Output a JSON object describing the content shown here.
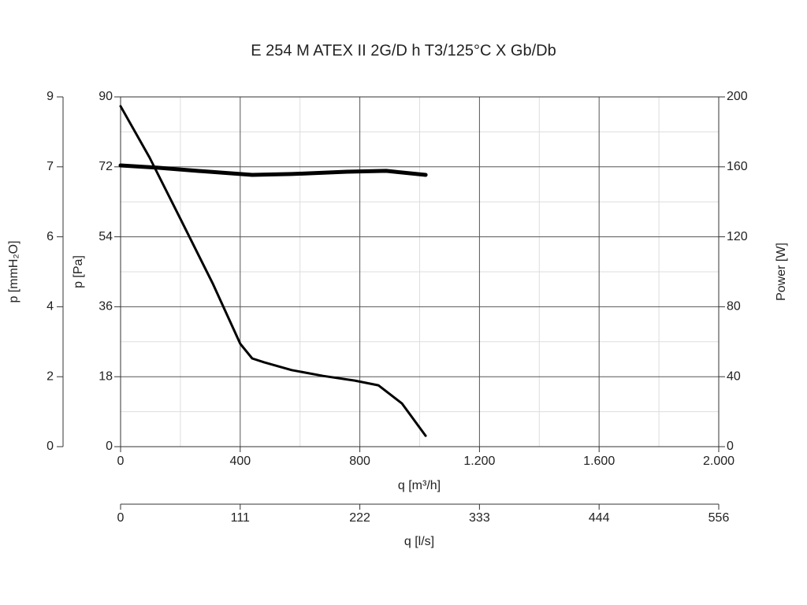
{
  "chart_data": {
    "type": "line",
    "title": "E 254 M ATEX II 2G/D h T3/125°C X Gb/Db",
    "x_label": "q [m³/h]",
    "x2_label": "q [l/s]",
    "y_label": "p [Pa]",
    "y2_label": "Power [W]",
    "y3_label": "p [mmH₂O]",
    "xlim": [
      0,
      2000
    ],
    "xticks": [
      0,
      400,
      800,
      {
        "value": 1200,
        "label": "1.200"
      },
      {
        "value": 1600,
        "label": "1.600"
      },
      {
        "value": 2000,
        "label": "2.000"
      }
    ],
    "xminorticks": [
      200,
      600,
      1000,
      1400,
      1800
    ],
    "x2lim": [
      0,
      555.56
    ],
    "x2ticks": [
      0,
      {
        "value": 111.11,
        "label": "111"
      },
      {
        "value": 222.22,
        "label": "222"
      },
      {
        "value": 333.33,
        "label": "333"
      },
      {
        "value": 444.44,
        "label": "444"
      },
      {
        "value": 555.56,
        "label": "556"
      }
    ],
    "ylim": [
      0,
      90
    ],
    "yticks": [
      0,
      18,
      36,
      54,
      72,
      90
    ],
    "yminorticks": [
      9,
      27,
      45,
      63,
      81
    ],
    "y2lim": [
      0,
      200
    ],
    "y2ticks": [
      0,
      40,
      80,
      120,
      160,
      200
    ],
    "y3lim": [
      0,
      9.177
    ],
    "y3ticks": [
      0,
      {
        "value": 1.835,
        "label": "2"
      },
      {
        "value": 3.671,
        "label": "4"
      },
      {
        "value": 5.506,
        "label": "6"
      },
      {
        "value": 7.342,
        "label": "7"
      },
      {
        "value": 9.177,
        "label": "9"
      }
    ],
    "grid": true,
    "series": [
      {
        "color": "#000000",
        "x": [
          0,
          97,
          203,
          308,
          400,
          440,
          480,
          572,
          677,
          783,
          862,
          941,
          1020
        ],
        "values": [
          87.6,
          74.4,
          58.2,
          42,
          26.5,
          22.7,
          21.7,
          19.7,
          18.2,
          17.0,
          15.8,
          11.1,
          2.8
        ]
      },
      {
        "color": "#000000",
        "axis": "y2",
        "x": [
          0,
          124,
          256,
          440,
          572,
          756,
          888,
          1020
        ],
        "values": [
          160.8,
          159.5,
          157.7,
          155.4,
          155.9,
          157.2,
          157.7,
          155.4
        ]
      }
    ]
  }
}
